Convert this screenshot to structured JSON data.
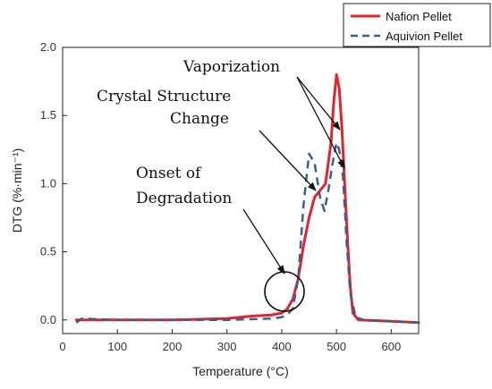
{
  "chart_data": {
    "type": "line",
    "xlabel": "Temperature (°C)",
    "ylabel": "DTG (%·min⁻¹)",
    "xlim": [
      0,
      650
    ],
    "ylim": [
      -0.1,
      2.0
    ],
    "xticks": [
      "0",
      "100",
      "200",
      "300",
      "400",
      "500",
      "600"
    ],
    "yticks": [
      "0.0",
      "0.5",
      "1.0",
      "1.5",
      "2.0"
    ],
    "legend_position": "top-right",
    "grid": false,
    "series": [
      {
        "name": "Nafion Pellet",
        "color": "#e3242b",
        "style": "solid",
        "points": [
          [
            25,
            0.0
          ],
          [
            100,
            0.0
          ],
          [
            200,
            0.0
          ],
          [
            300,
            0.01
          ],
          [
            350,
            0.03
          ],
          [
            380,
            0.035
          ],
          [
            400,
            0.05
          ],
          [
            410,
            0.08
          ],
          [
            420,
            0.15
          ],
          [
            430,
            0.3
          ],
          [
            440,
            0.55
          ],
          [
            450,
            0.75
          ],
          [
            460,
            0.9
          ],
          [
            470,
            0.95
          ],
          [
            480,
            1.0
          ],
          [
            490,
            1.3
          ],
          [
            495,
            1.6
          ],
          [
            500,
            1.8
          ],
          [
            505,
            1.7
          ],
          [
            510,
            1.4
          ],
          [
            515,
            1.0
          ],
          [
            520,
            0.6
          ],
          [
            525,
            0.25
          ],
          [
            530,
            0.05
          ],
          [
            540,
            0.0
          ],
          [
            600,
            -0.01
          ],
          [
            650,
            -0.02
          ]
        ]
      },
      {
        "name": "Aquivion Pellet",
        "color": "#3a5d9a",
        "style": "dashed",
        "points": [
          [
            25,
            -0.02
          ],
          [
            35,
            0.01
          ],
          [
            100,
            0.0
          ],
          [
            200,
            0.0
          ],
          [
            300,
            0.0
          ],
          [
            380,
            0.01
          ],
          [
            400,
            0.02
          ],
          [
            410,
            0.04
          ],
          [
            420,
            0.08
          ],
          [
            430,
            0.3
          ],
          [
            440,
            0.85
          ],
          [
            450,
            1.22
          ],
          [
            460,
            1.15
          ],
          [
            470,
            0.9
          ],
          [
            478,
            0.8
          ],
          [
            485,
            0.95
          ],
          [
            495,
            1.2
          ],
          [
            500,
            1.3
          ],
          [
            505,
            1.25
          ],
          [
            512,
            1.05
          ],
          [
            518,
            0.6
          ],
          [
            525,
            0.2
          ],
          [
            535,
            0.02
          ],
          [
            550,
            0.0
          ],
          [
            650,
            -0.02
          ]
        ]
      }
    ],
    "annotations": [
      {
        "lines": [
          "Vaporization"
        ]
      },
      {
        "lines": [
          "Crystal Structure",
          "Change"
        ]
      },
      {
        "lines": [
          "Onset of",
          "Degradation"
        ]
      }
    ]
  }
}
